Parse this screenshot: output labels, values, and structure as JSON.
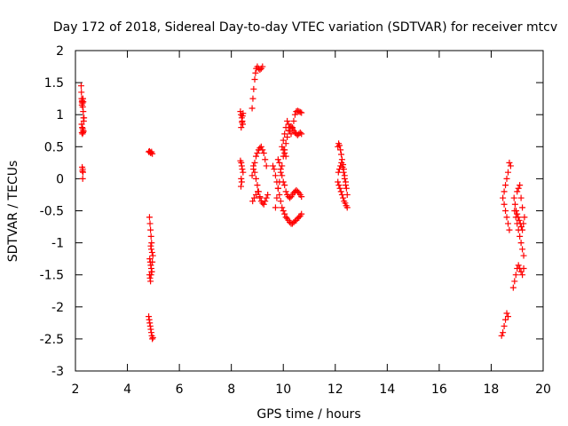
{
  "chart_data": {
    "type": "scatter",
    "title": "Day 172 of 2018, Sidereal Day-to-day VTEC variation (SDTVAR) for receiver mtcv",
    "xlabel": "GPS time / hours",
    "ylabel": "SDTVAR / TECUs",
    "xlim": [
      2,
      20
    ],
    "ylim": [
      -3,
      2
    ],
    "xticks": [
      "2",
      "4",
      "6",
      "8",
      "10",
      "12",
      "14",
      "16",
      "18",
      "20"
    ],
    "yticks": [
      "-3",
      "-2.5",
      "-2",
      "-1.5",
      "-1",
      "-0.5",
      "0",
      "0.5",
      "1",
      "1.5",
      "2"
    ],
    "grid": false,
    "legend": "none",
    "marker": "plus",
    "color": "#ff0000",
    "series": [
      {
        "x": [
          2.22,
          2.23,
          2.24,
          2.25,
          2.25,
          2.26,
          2.27,
          2.28,
          2.29,
          2.3,
          2.3,
          2.31,
          2.32,
          2.33,
          2.24,
          2.26,
          2.28,
          2.3,
          2.25,
          2.27,
          2.29,
          2.31,
          2.26,
          2.28,
          2.27,
          2.29,
          2.28
        ],
        "y": [
          1.45,
          1.35,
          1.25,
          1.2,
          1.15,
          1.22,
          1.18,
          1.12,
          1.25,
          1.2,
          1.05,
          0.95,
          0.9,
          0.95,
          0.85,
          0.8,
          0.78,
          0.75,
          0.72,
          0.7,
          0.72,
          0.74,
          0.18,
          0.15,
          0.12,
          0.1,
          0.0
        ]
      },
      {
        "x": [
          4.82,
          4.85,
          4.88,
          4.9,
          4.93,
          4.96,
          4.85,
          4.87,
          4.89,
          4.91,
          4.93,
          4.9,
          4.92,
          4.95,
          4.98,
          4.86,
          4.88,
          4.9,
          4.92,
          4.94,
          4.96,
          4.85,
          4.87,
          4.89,
          4.91,
          4.93,
          4.82,
          4.84,
          4.86,
          4.88,
          4.9,
          4.92,
          4.94,
          4.96,
          4.98
        ],
        "y": [
          0.42,
          0.43,
          0.41,
          0.4,
          0.42,
          0.39,
          -0.6,
          -0.7,
          -0.8,
          -0.9,
          -1.0,
          -1.05,
          -1.1,
          -1.15,
          -1.2,
          -1.25,
          -1.3,
          -1.35,
          -1.4,
          -1.45,
          -1.3,
          -1.5,
          -1.55,
          -1.6,
          -1.5,
          -1.45,
          -2.15,
          -2.2,
          -2.25,
          -2.3,
          -2.35,
          -2.4,
          -2.45,
          -2.5,
          -2.48
        ]
      },
      {
        "x": [
          8.35,
          8.37,
          8.4,
          8.42,
          8.44,
          8.38,
          8.41,
          8.43,
          8.45,
          8.35,
          8.38,
          8.4,
          8.42,
          8.45,
          8.38,
          8.4,
          8.37
        ],
        "y": [
          1.05,
          1.0,
          0.95,
          0.9,
          0.85,
          0.8,
          0.88,
          0.98,
          1.02,
          0.28,
          0.25,
          0.2,
          0.15,
          0.1,
          0.0,
          -0.05,
          -0.12
        ]
      },
      {
        "x": [
          8.8,
          8.83,
          8.86,
          8.9,
          8.93,
          8.96,
          9.0,
          9.05,
          9.1,
          9.15,
          9.2
        ],
        "y": [
          1.1,
          1.25,
          1.4,
          1.55,
          1.65,
          1.72,
          1.75,
          1.72,
          1.7,
          1.72,
          1.75
        ]
      },
      {
        "x": [
          8.8,
          8.85,
          8.9,
          8.95,
          9.0,
          9.05,
          9.1,
          9.15,
          9.2,
          9.25,
          9.3,
          9.35,
          8.85,
          8.9,
          8.95,
          9.0,
          9.05,
          9.1,
          9.15,
          9.2,
          9.25,
          9.3,
          9.35,
          9.4,
          8.82,
          8.88,
          8.95,
          9.02,
          9.1
        ],
        "y": [
          0.05,
          0.15,
          0.25,
          0.35,
          0.4,
          0.45,
          0.48,
          0.5,
          0.45,
          0.4,
          0.3,
          0.2,
          0.2,
          0.1,
          0.0,
          -0.1,
          -0.2,
          -0.3,
          -0.35,
          -0.38,
          -0.4,
          -0.35,
          -0.3,
          -0.25,
          -0.35,
          -0.3,
          -0.25,
          -0.2,
          -0.28
        ]
      },
      {
        "x": [
          9.6,
          9.65,
          9.7,
          9.75,
          9.8,
          9.85,
          9.9,
          9.95,
          10.0,
          10.05,
          10.1,
          10.15,
          10.2,
          10.25,
          10.3,
          10.35,
          10.4,
          10.45,
          10.5,
          10.55,
          10.6,
          10.65,
          10.7
        ],
        "y": [
          0.2,
          0.15,
          0.05,
          -0.05,
          -0.15,
          -0.25,
          -0.35,
          -0.45,
          -0.5,
          -0.55,
          -0.6,
          -0.62,
          -0.65,
          -0.68,
          -0.7,
          -0.7,
          -0.68,
          -0.66,
          -0.65,
          -0.62,
          -0.6,
          -0.58,
          -0.55
        ]
      },
      {
        "x": [
          9.7,
          9.75,
          9.8,
          9.85,
          9.9,
          9.95,
          10.0,
          10.05,
          10.1,
          10.15,
          10.2,
          10.25,
          10.3,
          10.35,
          10.4,
          10.45,
          10.5,
          10.55,
          10.6,
          10.65,
          10.7
        ],
        "y": [
          -0.45,
          -0.3,
          -0.15,
          -0.05,
          0.1,
          0.2,
          0.35,
          0.45,
          0.55,
          0.65,
          0.75,
          0.8,
          0.82,
          0.78,
          0.75,
          0.72,
          0.7,
          0.68,
          0.7,
          0.72,
          0.7
        ]
      },
      {
        "x": [
          9.8,
          9.85,
          9.9,
          9.95,
          10.0,
          10.05,
          10.1,
          10.15,
          10.2,
          10.25,
          10.3,
          10.35,
          10.4,
          10.45,
          10.5,
          10.55,
          10.6,
          10.65,
          10.7
        ],
        "y": [
          0.3,
          0.25,
          0.15,
          0.05,
          -0.05,
          -0.1,
          -0.2,
          -0.25,
          -0.28,
          -0.3,
          -0.28,
          -0.25,
          -0.22,
          -0.2,
          -0.18,
          -0.2,
          -0.22,
          -0.25,
          -0.28
        ]
      },
      {
        "x": [
          10.0,
          10.05,
          10.1,
          10.15,
          10.2,
          10.25,
          10.3,
          10.35,
          10.4,
          10.45,
          10.5,
          10.55,
          10.6,
          10.65,
          10.7,
          9.95,
          10.0,
          10.05,
          10.1
        ],
        "y": [
          0.6,
          0.7,
          0.8,
          0.9,
          0.85,
          0.75,
          0.7,
          0.8,
          0.9,
          1.0,
          1.05,
          1.06,
          1.05,
          1.04,
          1.03,
          0.5,
          0.45,
          0.4,
          0.35
        ]
      },
      {
        "x": [
          12.1,
          12.13,
          12.16,
          12.2,
          12.23,
          12.26,
          12.3,
          12.33,
          12.36,
          12.4,
          12.43,
          12.46,
          12.1,
          12.14,
          12.18,
          12.22,
          12.26,
          12.3,
          12.34,
          12.38,
          12.42,
          12.46,
          12.12,
          12.16,
          12.2,
          12.24,
          12.28,
          12.32,
          12.36,
          12.4
        ],
        "y": [
          0.5,
          0.55,
          0.52,
          0.45,
          0.38,
          0.3,
          0.22,
          0.15,
          0.05,
          -0.05,
          -0.15,
          -0.25,
          -0.05,
          -0.1,
          -0.15,
          -0.2,
          -0.25,
          -0.3,
          -0.35,
          -0.38,
          -0.42,
          -0.45,
          0.1,
          0.15,
          0.2,
          0.25,
          0.18,
          0.1,
          0.0,
          -0.1
        ]
      },
      {
        "x": [
          18.4,
          18.45,
          18.5,
          18.55,
          18.6,
          18.65,
          18.5,
          18.55,
          18.6,
          18.65,
          18.7,
          18.45,
          18.5,
          18.55,
          18.6,
          18.65,
          18.7,
          18.75
        ],
        "y": [
          -2.45,
          -2.4,
          -2.3,
          -2.2,
          -2.1,
          -2.15,
          -0.4,
          -0.5,
          -0.6,
          -0.7,
          -0.8,
          -0.3,
          -0.2,
          -0.1,
          0.0,
          0.1,
          0.25,
          0.2
        ]
      },
      {
        "x": [
          18.85,
          18.9,
          18.95,
          19.0,
          19.05,
          19.1,
          19.15,
          19.2,
          19.25,
          18.9,
          18.95,
          19.0,
          19.05,
          19.1,
          19.15,
          19.2,
          19.25,
          18.88,
          18.92,
          18.96,
          19.0,
          19.04,
          19.08,
          19.12,
          19.16,
          19.2,
          19.24,
          19.28,
          19.0,
          19.05,
          19.1,
          19.15,
          19.2
        ],
        "y": [
          -1.7,
          -1.6,
          -1.5,
          -1.4,
          -1.35,
          -1.4,
          -1.45,
          -1.5,
          -1.4,
          -0.5,
          -0.6,
          -0.7,
          -0.8,
          -0.9,
          -1.0,
          -1.1,
          -1.2,
          -0.3,
          -0.4,
          -0.5,
          -0.55,
          -0.6,
          -0.65,
          -0.7,
          -0.75,
          -0.8,
          -0.7,
          -0.6,
          -0.2,
          -0.15,
          -0.1,
          -0.3,
          -0.45
        ]
      }
    ]
  }
}
